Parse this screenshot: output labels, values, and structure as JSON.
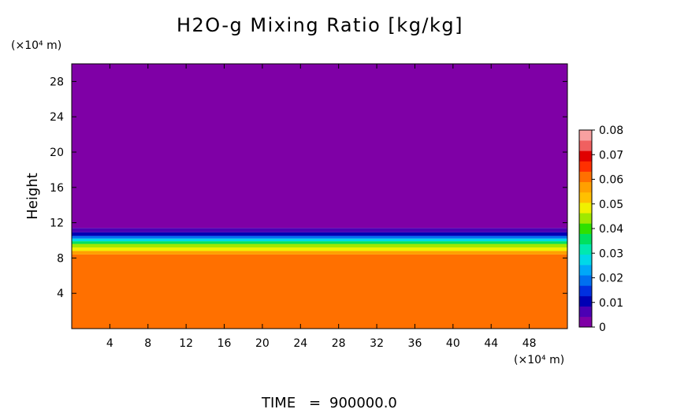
{
  "chart_data": {
    "type": "heatmap",
    "title": "H2O-g Mixing Ratio [kg/kg]",
    "ylabel": "Height",
    "x_unit": "(×10⁴ m)",
    "y_unit": "(×10⁴ m)",
    "xlim": [
      0,
      52
    ],
    "ylim": [
      0,
      30
    ],
    "x_ticks": [
      "4",
      "8",
      "12",
      "16",
      "20",
      "24",
      "28",
      "32",
      "36",
      "40",
      "44",
      "48"
    ],
    "y_ticks": [
      "4",
      "8",
      "12",
      "16",
      "20",
      "24",
      "28"
    ],
    "colorbar": {
      "vmin": 0,
      "vmax": 0.08,
      "ticks": [
        "0",
        "0.01",
        "0.02",
        "0.03",
        "0.04",
        "0.05",
        "0.06",
        "0.07",
        "0.08"
      ],
      "colors": [
        "#7f00a6",
        "#4b00b4",
        "#0000b4",
        "#0030e0",
        "#0070f0",
        "#00a8f8",
        "#00d8e8",
        "#00e8b0",
        "#00e060",
        "#30e000",
        "#a0e800",
        "#f0f000",
        "#ffc000",
        "#ffa000",
        "#ff7000",
        "#ff3000",
        "#e00000",
        "#f06060",
        "#f8a0a0"
      ]
    },
    "vertical_profile": [
      {
        "height_from": 0,
        "height_to": 8.4,
        "value": 0.062
      },
      {
        "height_from": 8.4,
        "height_to": 8.8,
        "value": 0.058
      },
      {
        "height_from": 8.8,
        "height_to": 9.2,
        "value": 0.05
      },
      {
        "height_from": 9.2,
        "height_to": 9.6,
        "value": 0.045
      },
      {
        "height_from": 9.6,
        "height_to": 9.9,
        "value": 0.035
      },
      {
        "height_from": 9.9,
        "height_to": 10.2,
        "value": 0.025
      },
      {
        "height_from": 10.2,
        "height_to": 10.5,
        "value": 0.017
      },
      {
        "height_from": 10.5,
        "height_to": 10.9,
        "value": 0.009
      },
      {
        "height_from": 10.9,
        "height_to": 11.4,
        "value": 0.004
      },
      {
        "height_from": 11.4,
        "height_to": 30,
        "value": 0
      }
    ]
  },
  "footer": {
    "time_label": "TIME",
    "time_eq": "=",
    "time_value": "900000.0"
  }
}
